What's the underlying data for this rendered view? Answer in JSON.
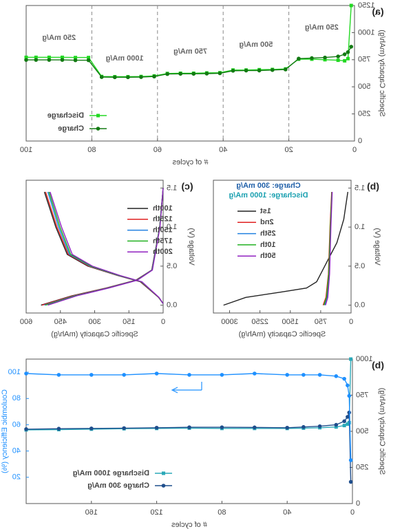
{
  "chart_data": [
    {
      "type": "line",
      "panel_label": "(a)",
      "xlabel": "# of cycles",
      "ylabel": "Specific Capacity (mAh/g)",
      "xlim": [
        0,
        100
      ],
      "ylim": [
        0,
        1250
      ],
      "xticks": [
        0,
        20,
        40,
        60,
        80,
        100
      ],
      "yticks": [
        0,
        250,
        500,
        750,
        1000,
        1250
      ],
      "dividers": [
        20,
        40,
        60,
        80
      ],
      "annotations": [
        "250 mA/g",
        "500 mA/g",
        "750 mA/g",
        "1000 mA/g",
        "250 mA/g"
      ],
      "series": [
        {
          "name": "Discharge",
          "color": "#22d822",
          "marker": "square",
          "x": [
            1,
            2,
            3,
            5,
            9,
            13,
            17,
            21,
            25,
            29,
            33,
            37,
            41,
            45,
            49,
            53,
            57,
            61,
            65,
            69,
            73,
            77,
            81,
            85,
            89,
            93,
            97,
            100
          ],
          "values": [
            1250,
            760,
            740,
            745,
            750,
            755,
            755,
            665,
            660,
            658,
            655,
            655,
            630,
            628,
            625,
            625,
            623,
            600,
            595,
            593,
            593,
            595,
            770,
            770,
            772,
            772,
            772,
            772
          ]
        },
        {
          "name": "Charge",
          "color": "#137a13",
          "marker": "circle",
          "x": [
            1,
            2,
            3,
            5,
            9,
            13,
            17,
            21,
            25,
            29,
            33,
            37,
            41,
            45,
            49,
            53,
            57,
            61,
            65,
            69,
            73,
            77,
            81,
            85,
            89,
            93,
            97,
            100
          ],
          "values": [
            870,
            820,
            800,
            780,
            770,
            765,
            760,
            660,
            655,
            650,
            650,
            648,
            625,
            622,
            620,
            620,
            618,
            595,
            590,
            588,
            588,
            590,
            745,
            745,
            748,
            748,
            748,
            748
          ]
        }
      ]
    },
    {
      "type": "line",
      "panel_label": "(b)",
      "xlabel": "Specific Capacity (mAh/g)",
      "ylabel": "Voltage (V)",
      "xlim": [
        0,
        3400
      ],
      "ylim": [
        -0.1,
        1.6
      ],
      "xticks": [
        0,
        750,
        1500,
        2250,
        3000
      ],
      "yticks": [
        {
          "value": 0,
          "label": "0.0"
        },
        0.5,
        {
          "value": 1,
          "label": "1.0"
        },
        1.5
      ],
      "annotations": [
        "Charge: 300 mA/g",
        "Discharge: 1000 mA/g"
      ],
      "annotation_colors": [
        "#1f5fa8",
        "#1aa0b0"
      ],
      "series": [
        {
          "name": "1st",
          "color": "#222222",
          "x": [
            3150,
            2600,
            1700,
            1100,
            850,
            700,
            550,
            350,
            180,
            80
          ],
          "values": [
            0.0,
            0.1,
            0.17,
            0.22,
            0.3,
            0.45,
            0.6,
            0.8,
            1.1,
            1.45
          ]
        },
        {
          "name": "2nd",
          "color": "#e02020",
          "x": [
            690,
            620,
            560,
            520,
            480
          ],
          "values": [
            0.0,
            0.1,
            0.4,
            1.0,
            1.45
          ]
        },
        {
          "name": "25th",
          "color": "#2080e0",
          "x": [
            650,
            590,
            540,
            505,
            470
          ],
          "values": [
            0.0,
            0.1,
            0.4,
            1.0,
            1.45
          ]
        },
        {
          "name": "10th",
          "color": "#20b020",
          "x": [
            670,
            605,
            550,
            512,
            475
          ],
          "values": [
            0.0,
            0.1,
            0.4,
            1.0,
            1.45
          ]
        },
        {
          "name": "50th",
          "color": "#9020c0",
          "x": [
            630,
            575,
            530,
            498,
            465
          ],
          "values": [
            0.0,
            0.1,
            0.4,
            1.0,
            1.45
          ]
        }
      ]
    },
    {
      "type": "line",
      "panel_label": "(c)",
      "xlabel": "Specific Capacity (mAh/g)",
      "ylabel": "Voltage (V)",
      "xlim": [
        0,
        600
      ],
      "ylim": [
        -0.1,
        1.6
      ],
      "xticks": [
        0,
        150,
        300,
        450,
        600
      ],
      "yticks": [
        {
          "value": 0,
          "label": "0.0"
        },
        0.5,
        {
          "value": 1,
          "label": "1.0"
        },
        1.5
      ],
      "series": [
        {
          "name": "100th",
          "color": "#222222",
          "x": [
            520,
            470,
            420,
            330,
            200,
            100,
            20,
            0,
            null,
            535,
            400,
            250,
            120,
            50,
            15,
            0
          ],
          "values": [
            1.45,
            1.0,
            0.65,
            0.5,
            0.38,
            0.3,
            0.1,
            0.02,
            null,
            0.0,
            0.12,
            0.22,
            0.32,
            0.45,
            1.0,
            1.5
          ]
        },
        {
          "name": "125th",
          "color": "#e02020",
          "x": [
            515,
            465,
            415,
            325,
            198,
            98,
            20,
            0,
            null,
            530,
            395,
            248,
            118,
            50,
            15,
            0
          ],
          "values": [
            1.45,
            1.0,
            0.65,
            0.5,
            0.38,
            0.3,
            0.1,
            0.02,
            null,
            0.0,
            0.12,
            0.22,
            0.32,
            0.45,
            1.0,
            1.5
          ]
        },
        {
          "name": "150th",
          "color": "#2080e0",
          "x": [
            505,
            458,
            410,
            320,
            195,
            96,
            19,
            0,
            null,
            520,
            388,
            244,
            116,
            49,
            15,
            0
          ],
          "values": [
            1.45,
            1.0,
            0.65,
            0.5,
            0.38,
            0.3,
            0.1,
            0.02,
            null,
            0.0,
            0.12,
            0.22,
            0.32,
            0.45,
            1.0,
            1.5
          ]
        },
        {
          "name": "175th",
          "color": "#20b020",
          "x": [
            500,
            452,
            405,
            316,
            192,
            95,
            19,
            0,
            null,
            515,
            384,
            241,
            115,
            48,
            15,
            0
          ],
          "values": [
            1.45,
            1.0,
            0.65,
            0.5,
            0.38,
            0.3,
            0.1,
            0.02,
            null,
            0.0,
            0.12,
            0.22,
            0.32,
            0.45,
            1.0,
            1.5
          ]
        },
        {
          "name": "200th",
          "color": "#9020c0",
          "x": [
            495,
            445,
            398,
            310,
            188,
            93,
            18,
            0,
            null,
            505,
            378,
            238,
            113,
            47,
            14,
            0
          ],
          "values": [
            1.45,
            1.0,
            0.65,
            0.5,
            0.38,
            0.3,
            0.1,
            0.02,
            null,
            0.0,
            0.12,
            0.22,
            0.32,
            0.45,
            1.0,
            1.5
          ]
        }
      ]
    },
    {
      "type": "line",
      "panel_label": "(b)",
      "xlabel": "# of cycles",
      "ylabel": "Specific Capacity (mAh/g)",
      "y2label": "Coulombic Efficiency (%)",
      "xlim": [
        0,
        200
      ],
      "ylim": [
        0,
        1000
      ],
      "y2lim": [
        0,
        110
      ],
      "xticks": [
        0,
        40,
        80,
        120,
        160
      ],
      "yticks": [
        0,
        250,
        500,
        750,
        1000
      ],
      "y2ticks": [
        20,
        40,
        60,
        80,
        100
      ],
      "series": [
        {
          "name": "Discharge 1000 mA/g",
          "color": "#2aa8b8",
          "marker": "square",
          "x": [
            1,
            2,
            3,
            5,
            10,
            20,
            30,
            40,
            60,
            80,
            100,
            120,
            140,
            160,
            180,
            200
          ],
          "values": [
            1000,
            560,
            550,
            540,
            530,
            525,
            522,
            520,
            520,
            520,
            522,
            520,
            518,
            515,
            512,
            510
          ]
        },
        {
          "name": "Charge 300 mA/g",
          "color": "#1f4e8c",
          "marker": "circle",
          "x": [
            1,
            2,
            3,
            5,
            10,
            20,
            30,
            40,
            60,
            80,
            100,
            120,
            140,
            160,
            180,
            200
          ],
          "values": [
            150,
            630,
            600,
            570,
            545,
            535,
            530,
            525,
            527,
            528,
            528,
            525,
            522,
            520,
            518,
            515
          ]
        },
        {
          "color": "#1e90ff",
          "marker": "circle",
          "axis": "y2",
          "x": [
            1,
            2,
            3,
            5,
            10,
            20,
            30,
            40,
            60,
            80,
            100,
            120,
            140,
            160,
            180,
            200
          ],
          "values": [
            33,
            82,
            90,
            95,
            97,
            98,
            98,
            98,
            99,
            98,
            98,
            99,
            98,
            98,
            98,
            99
          ]
        }
      ]
    }
  ]
}
